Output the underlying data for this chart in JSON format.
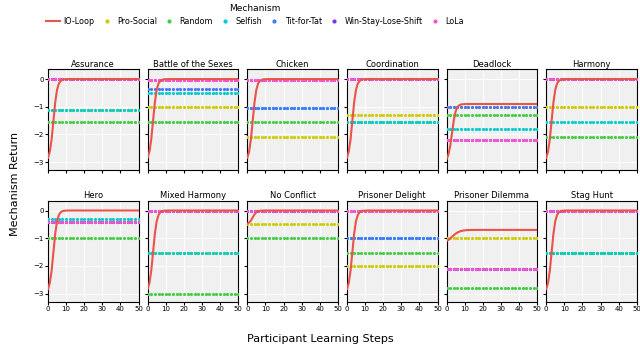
{
  "games": [
    "Assurance",
    "Battle of the Sexes",
    "Chicken",
    "Coordination",
    "Deadlock",
    "Harmony",
    "Hero",
    "Mixed Harmony",
    "No Conflict",
    "Prisoner Delight",
    "Prisoner Dilemma",
    "Stag Hunt"
  ],
  "mechanisms": [
    "IO-Loop",
    "Pro-Social",
    "Random",
    "Selfish",
    "Tit-for-Tat",
    "Win-Stay-Lose-Shift",
    "LoLa"
  ],
  "mechanism_colors": [
    "#e8534a",
    "#cccc00",
    "#44cc44",
    "#00cccc",
    "#4477ff",
    "#7733ee",
    "#ff55cc"
  ],
  "x_label": "Participant Learning Steps",
  "y_label": "Mechanism Return",
  "legend_title": "Mechanism",
  "game_finals": {
    "Assurance": {
      "IO-Loop": 0.0,
      "Pro-Social": -1.1,
      "Random": -1.55,
      "Selfish": -1.1,
      "Tit-for-Tat": 0.0,
      "Win-Stay-Lose-Shift": 0.0,
      "LoLa": 0.0
    },
    "Battle of the Sexes": {
      "IO-Loop": 0.0,
      "Pro-Social": -1.0,
      "Random": -1.55,
      "Selfish": -0.5,
      "Tit-for-Tat": -0.35,
      "Win-Stay-Lose-Shift": -0.05,
      "LoLa": -0.05
    },
    "Chicken": {
      "IO-Loop": 0.0,
      "Pro-Social": -2.1,
      "Random": -1.55,
      "Selfish": -1.05,
      "Tit-for-Tat": -1.05,
      "Win-Stay-Lose-Shift": -0.05,
      "LoLa": -0.05
    },
    "Coordination": {
      "IO-Loop": 0.0,
      "Pro-Social": -1.3,
      "Random": -1.55,
      "Selfish": -1.55,
      "Tit-for-Tat": 0.0,
      "Win-Stay-Lose-Shift": 0.0,
      "LoLa": 0.0
    },
    "Deadlock": {
      "IO-Loop": -0.9,
      "Pro-Social": -1.0,
      "Random": -1.3,
      "Selfish": -1.8,
      "Tit-for-Tat": -1.0,
      "Win-Stay-Lose-Shift": -2.2,
      "LoLa": -2.2
    },
    "Harmony": {
      "IO-Loop": 0.0,
      "Pro-Social": -1.0,
      "Random": -2.1,
      "Selfish": -1.55,
      "Tit-for-Tat": 0.0,
      "Win-Stay-Lose-Shift": 0.0,
      "LoLa": 0.0
    },
    "Hero": {
      "IO-Loop": 0.0,
      "Pro-Social": -0.4,
      "Random": -1.0,
      "Selfish": -0.3,
      "Tit-for-Tat": -0.4,
      "Win-Stay-Lose-Shift": -0.4,
      "LoLa": -0.4
    },
    "Mixed Harmony": {
      "IO-Loop": 0.0,
      "Pro-Social": -1.55,
      "Random": -3.0,
      "Selfish": -1.55,
      "Tit-for-Tat": 0.0,
      "Win-Stay-Lose-Shift": 0.0,
      "LoLa": 0.0
    },
    "No Conflict": {
      "IO-Loop": 0.0,
      "Pro-Social": -0.5,
      "Random": -1.0,
      "Selfish": 0.0,
      "Tit-for-Tat": 0.0,
      "Win-Stay-Lose-Shift": 0.0,
      "LoLa": 0.0
    },
    "Prisoner Delight": {
      "IO-Loop": 0.0,
      "Pro-Social": -2.0,
      "Random": -1.55,
      "Selfish": -1.0,
      "Tit-for-Tat": -1.0,
      "Win-Stay-Lose-Shift": 0.0,
      "LoLa": 0.0
    },
    "Prisoner Dilemma": {
      "IO-Loop": -0.7,
      "Pro-Social": -1.0,
      "Random": -2.8,
      "Selfish": -2.1,
      "Tit-for-Tat": -2.1,
      "Win-Stay-Lose-Shift": -2.1,
      "LoLa": -2.1
    },
    "Stag Hunt": {
      "IO-Loop": 0.0,
      "Pro-Social": -1.55,
      "Random": -1.55,
      "Selfish": -1.55,
      "Tit-for-Tat": 0.0,
      "Win-Stay-Lose-Shift": 0.0,
      "LoLa": 0.0
    }
  },
  "io_loop_start": {
    "Assurance": -3.0,
    "Battle of the Sexes": -3.0,
    "Chicken": -3.0,
    "Coordination": -3.0,
    "Deadlock": -3.0,
    "Harmony": -3.0,
    "Hero": -3.0,
    "Mixed Harmony": -3.0,
    "No Conflict": -0.5,
    "Prisoner Delight": -3.0,
    "Prisoner Dilemma": -1.2,
    "Stag Hunt": -3.0
  },
  "io_loop_speed": {
    "Assurance": 8,
    "Battle of the Sexes": 8,
    "Chicken": 8,
    "Coordination": 8,
    "Deadlock": 8,
    "Harmony": 8,
    "Hero": 8,
    "Mixed Harmony": 8,
    "No Conflict": 8,
    "Prisoner Delight": 8,
    "Prisoner Dilemma": 4,
    "Stag Hunt": 8
  },
  "ylim": [
    -3.3,
    0.35
  ],
  "xlim": [
    0,
    50
  ],
  "xticks": [
    0,
    10,
    20,
    30,
    40,
    50
  ],
  "yticks": [
    0,
    -1,
    -2,
    -3
  ],
  "bg_color": "#f0f0f0",
  "grid_color": "#ffffff"
}
